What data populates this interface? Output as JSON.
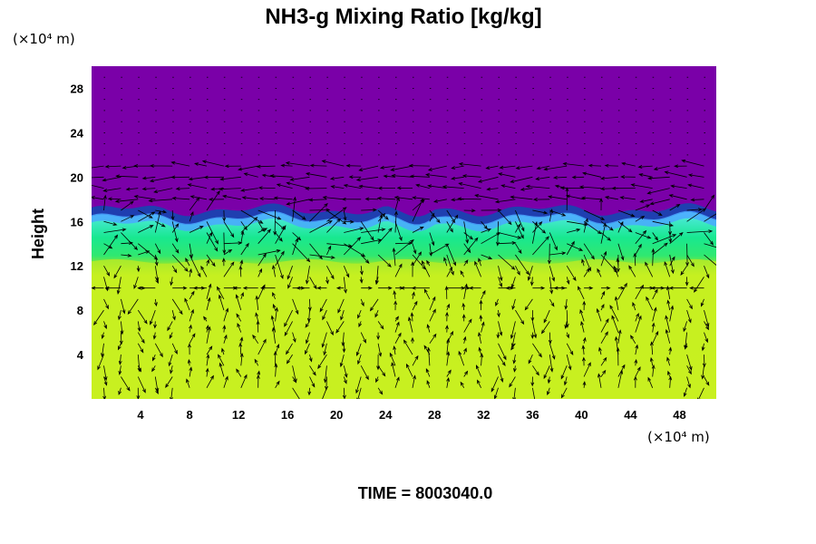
{
  "chart_data": {
    "type": "heatmap",
    "title": "NH3-g Mixing Ratio [kg/kg]",
    "ylabel": "Height",
    "xlabel": "",
    "x_unit_label": "(×10⁴ m)",
    "y_unit_label": "(×10⁴ m)",
    "x_ticks": [
      4,
      8,
      12,
      16,
      20,
      24,
      28,
      32,
      36,
      40,
      44,
      48
    ],
    "y_ticks": [
      4,
      8,
      12,
      16,
      20,
      24,
      28
    ],
    "xlim": [
      0,
      51
    ],
    "ylim": [
      0,
      30
    ],
    "colors": {
      "upper": "#7a00a8",
      "interface_dark": "#1f3fb0",
      "interface_mid": "#4aa8ff",
      "interface_light": "#6fe8ff",
      "middle": "#18e890",
      "lower_band": "#7fe83a",
      "lower": "#c6f020",
      "vectors": "#000000"
    },
    "layers": [
      {
        "from": 17,
        "to": 30,
        "color": "upper"
      },
      {
        "from": 12.5,
        "to": 16.5,
        "color": "middle"
      },
      {
        "from": 0,
        "to": 12.5,
        "color": "lower"
      }
    ],
    "vector_field": "wind arrows overlaid on the field"
  },
  "footer": {
    "time_text": "TIME = 8003040.0"
  }
}
